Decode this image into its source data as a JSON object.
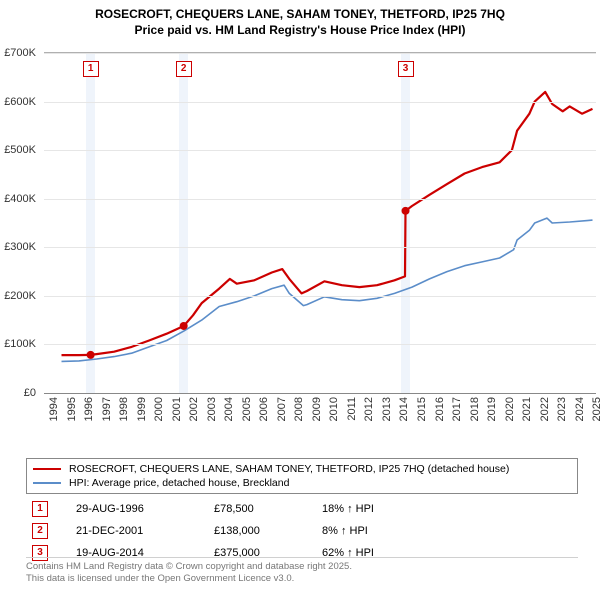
{
  "title": {
    "line1": "ROSECROFT, CHEQUERS LANE, SAHAM TONEY, THETFORD, IP25 7HQ",
    "line2": "Price paid vs. HM Land Registry's House Price Index (HPI)"
  },
  "chart": {
    "type": "line",
    "background_color": "#ffffff",
    "grid_color": "#e6e6e6",
    "ylim": [
      0,
      700000
    ],
    "ytick_step": 100000,
    "yticks": [
      "£0",
      "£100K",
      "£200K",
      "£300K",
      "£400K",
      "£500K",
      "£600K",
      "£700K"
    ],
    "xlim": [
      1994,
      2025.5
    ],
    "xticks": [
      1994,
      1995,
      1996,
      1997,
      1998,
      1999,
      2000,
      2001,
      2002,
      2003,
      2004,
      2005,
      2006,
      2007,
      2008,
      2009,
      2010,
      2011,
      2012,
      2013,
      2014,
      2015,
      2016,
      2017,
      2018,
      2019,
      2020,
      2021,
      2022,
      2023,
      2024,
      2025
    ],
    "vbands": [
      {
        "x": 1996.66,
        "width": 0.5
      },
      {
        "x": 2001.97,
        "width": 0.5
      },
      {
        "x": 2014.63,
        "width": 0.5
      }
    ],
    "marker_boxes": [
      {
        "idx": "1",
        "x": 1996.66
      },
      {
        "idx": "2",
        "x": 2001.97
      },
      {
        "idx": "3",
        "x": 2014.63
      }
    ],
    "series_red": {
      "color": "#cc0000",
      "width": 2.2,
      "points": [
        [
          1995,
          78000
        ],
        [
          1996,
          78000
        ],
        [
          1996.66,
          78500
        ],
        [
          1997,
          80000
        ],
        [
          1998,
          85000
        ],
        [
          1999,
          95000
        ],
        [
          2000,
          108000
        ],
        [
          2001,
          122000
        ],
        [
          2001.97,
          138000
        ],
        [
          2002.5,
          160000
        ],
        [
          2003,
          185000
        ],
        [
          2004,
          215000
        ],
        [
          2004.6,
          235000
        ],
        [
          2005,
          225000
        ],
        [
          2006,
          232000
        ],
        [
          2007,
          248000
        ],
        [
          2007.6,
          255000
        ],
        [
          2008,
          235000
        ],
        [
          2008.7,
          205000
        ],
        [
          2009,
          210000
        ],
        [
          2010,
          230000
        ],
        [
          2011,
          222000
        ],
        [
          2012,
          218000
        ],
        [
          2013,
          222000
        ],
        [
          2014,
          232000
        ],
        [
          2014.6,
          240000
        ],
        [
          2014.63,
          375000
        ],
        [
          2015,
          385000
        ],
        [
          2016,
          408000
        ],
        [
          2017,
          430000
        ],
        [
          2018,
          452000
        ],
        [
          2019,
          465000
        ],
        [
          2020,
          475000
        ],
        [
          2020.7,
          500000
        ],
        [
          2021,
          540000
        ],
        [
          2021.7,
          575000
        ],
        [
          2022,
          600000
        ],
        [
          2022.6,
          620000
        ],
        [
          2023,
          595000
        ],
        [
          2023.6,
          580000
        ],
        [
          2024,
          590000
        ],
        [
          2024.7,
          575000
        ],
        [
          2025.3,
          585000
        ]
      ],
      "dots": [
        [
          1996.66,
          78500
        ],
        [
          2001.97,
          138000
        ],
        [
          2014.63,
          375000
        ]
      ]
    },
    "series_blue": {
      "color": "#5b8dc9",
      "width": 1.6,
      "points": [
        [
          1995,
          65000
        ],
        [
          1996,
          66000
        ],
        [
          1997,
          70000
        ],
        [
          1998,
          75000
        ],
        [
          1999,
          82000
        ],
        [
          2000,
          95000
        ],
        [
          2001,
          108000
        ],
        [
          2002,
          128000
        ],
        [
          2003,
          150000
        ],
        [
          2004,
          178000
        ],
        [
          2005,
          188000
        ],
        [
          2006,
          200000
        ],
        [
          2007,
          215000
        ],
        [
          2007.7,
          222000
        ],
        [
          2008,
          205000
        ],
        [
          2008.8,
          180000
        ],
        [
          2009,
          182000
        ],
        [
          2010,
          198000
        ],
        [
          2011,
          192000
        ],
        [
          2012,
          190000
        ],
        [
          2013,
          195000
        ],
        [
          2014,
          205000
        ],
        [
          2015,
          218000
        ],
        [
          2016,
          235000
        ],
        [
          2017,
          250000
        ],
        [
          2018,
          262000
        ],
        [
          2019,
          270000
        ],
        [
          2020,
          278000
        ],
        [
          2020.8,
          295000
        ],
        [
          2021,
          315000
        ],
        [
          2021.7,
          335000
        ],
        [
          2022,
          350000
        ],
        [
          2022.7,
          360000
        ],
        [
          2023,
          350000
        ],
        [
          2024,
          352000
        ],
        [
          2025,
          355000
        ],
        [
          2025.3,
          356000
        ]
      ]
    }
  },
  "legend": {
    "items": [
      {
        "color": "#cc0000",
        "label": "ROSECROFT, CHEQUERS LANE, SAHAM TONEY, THETFORD, IP25 7HQ (detached house)"
      },
      {
        "color": "#5b8dc9",
        "label": "HPI: Average price, detached house, Breckland"
      }
    ]
  },
  "sales": [
    {
      "idx": "1",
      "date": "29-AUG-1996",
      "price": "£78,500",
      "pct": "18% ↑ HPI"
    },
    {
      "idx": "2",
      "date": "21-DEC-2001",
      "price": "£138,000",
      "pct": "8% ↑ HPI"
    },
    {
      "idx": "3",
      "date": "19-AUG-2014",
      "price": "£375,000",
      "pct": "62% ↑ HPI"
    }
  ],
  "footer": {
    "line1": "Contains HM Land Registry data © Crown copyright and database right 2025.",
    "line2": "This data is licensed under the Open Government Licence v3.0."
  }
}
